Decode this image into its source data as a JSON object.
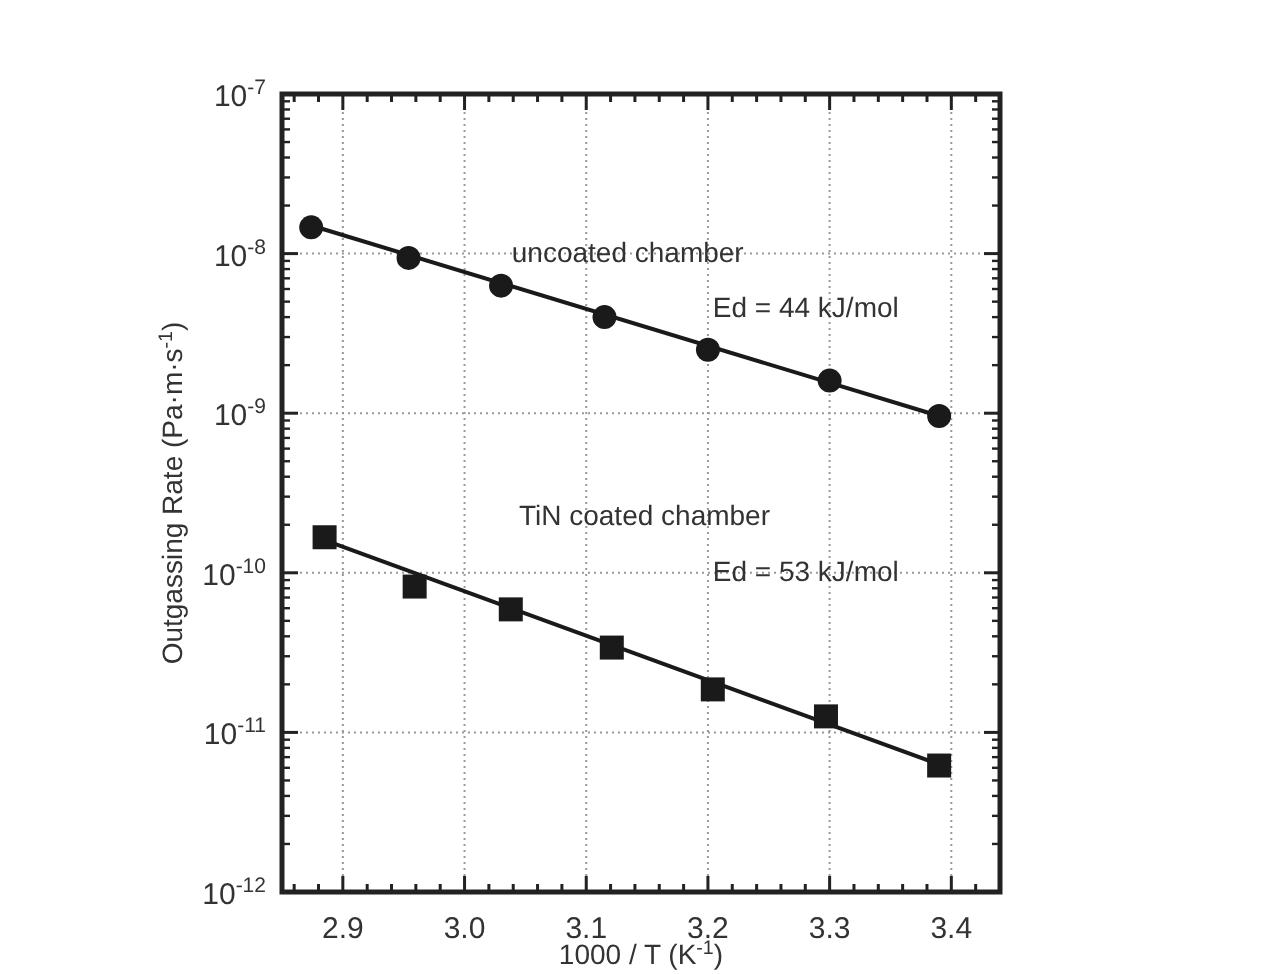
{
  "chart_data": {
    "type": "scatter",
    "xlabel": "1000 / T  (K$^{-1}$)",
    "ylabel": "Outgassing Rate (Pa·m·s$^{-1}$)",
    "log": "y",
    "grid": true,
    "xlim": [
      2.85,
      3.44
    ],
    "xticks": [
      {
        "value": 2.86,
        "label": null
      },
      {
        "value": 2.88,
        "label": null
      },
      {
        "value": 2.9,
        "label": "2.9"
      },
      {
        "value": 2.92,
        "label": null
      },
      {
        "value": 2.94,
        "label": null
      },
      {
        "value": 2.96,
        "label": null
      },
      {
        "value": 2.98,
        "label": null
      },
      {
        "value": 3.0,
        "label": "3.0"
      },
      {
        "value": 3.02,
        "label": null
      },
      {
        "value": 3.04,
        "label": null
      },
      {
        "value": 3.06,
        "label": null
      },
      {
        "value": 3.08,
        "label": null
      },
      {
        "value": 3.1,
        "label": "3.1"
      },
      {
        "value": 3.12,
        "label": null
      },
      {
        "value": 3.14,
        "label": null
      },
      {
        "value": 3.16,
        "label": null
      },
      {
        "value": 3.18,
        "label": null
      },
      {
        "value": 3.2,
        "label": "3.2"
      },
      {
        "value": 3.22,
        "label": null
      },
      {
        "value": 3.24,
        "label": null
      },
      {
        "value": 3.26,
        "label": null
      },
      {
        "value": 3.28,
        "label": null
      },
      {
        "value": 3.3,
        "label": "3.3"
      },
      {
        "value": 3.32,
        "label": null
      },
      {
        "value": 3.34,
        "label": null
      },
      {
        "value": 3.36,
        "label": null
      },
      {
        "value": 3.38,
        "label": null
      },
      {
        "value": 3.4,
        "label": "3.4"
      },
      {
        "value": 3.42,
        "label": null
      }
    ],
    "ylim": [
      1e-12,
      1e-07
    ],
    "yticks": [
      {
        "value": 1e-12,
        "label": "10$^{-12}$"
      },
      {
        "value": 1e-11,
        "label": "10$^{-11}$"
      },
      {
        "value": 1e-10,
        "label": "10$^{-10}$"
      },
      {
        "value": 1e-09,
        "label": "10$^{-9}$"
      },
      {
        "value": 1e-08,
        "label": "10$^{-8}$"
      },
      {
        "value": 1e-07,
        "label": "10$^{-7}$"
      }
    ],
    "series": [
      {
        "marker": "circle",
        "color": "#1a1a1a",
        "x": [
          2.874,
          2.954,
          3.03,
          3.115,
          3.2,
          3.3,
          3.39
        ],
        "values": [
          1.46e-08,
          9.4e-09,
          6.3e-09,
          4e-09,
          2.5e-09,
          1.6e-09,
          9.6e-10
        ]
      },
      {
        "type": "line",
        "marker": "none",
        "line_style": "solid",
        "color": "#1a1a1a",
        "x": [
          2.874,
          3.39
        ],
        "values": [
          1.5e-08,
          9.6e-10
        ]
      },
      {
        "marker": "square",
        "color": "#1a1a1a",
        "x": [
          2.885,
          2.959,
          3.038,
          3.121,
          3.204,
          3.297,
          3.39
        ],
        "values": [
          1.67e-10,
          8.2e-11,
          5.9e-11,
          3.4e-11,
          1.86e-11,
          1.26e-11,
          6.2e-12
        ]
      },
      {
        "type": "line",
        "marker": "none",
        "line_style": "solid",
        "color": "#1a1a1a",
        "x": [
          2.885,
          3.39
        ],
        "values": [
          1.6e-10,
          6.3e-12
        ]
      }
    ],
    "annotations": [
      "uncoated chamber",
      "Ed = 44 kJ/mol",
      "TiN coated chamber",
      "Ed = 53 kJ/mol"
    ]
  }
}
